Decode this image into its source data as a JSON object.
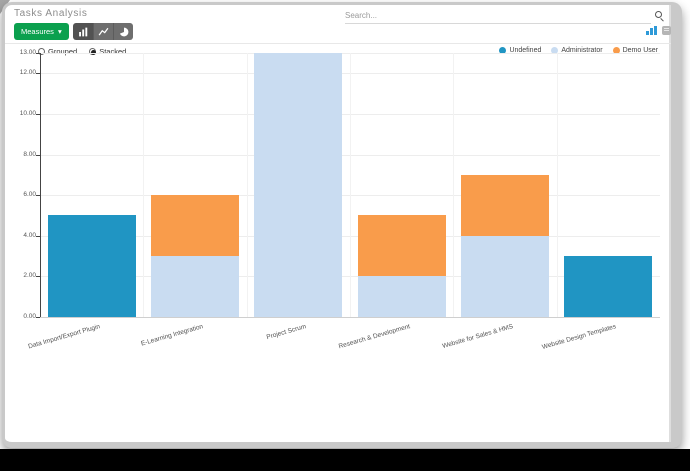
{
  "header": {
    "title": "Tasks Analysis",
    "search_placeholder": "Search...",
    "view_icons": [
      "graph-view",
      "grid-view"
    ],
    "active_view": "graph-view"
  },
  "toolbar": {
    "measures_label": "Measures",
    "measures_color": "#0ba04e",
    "chart_type_icons": [
      "bar-chart",
      "line-chart",
      "pie-chart"
    ],
    "active_chart_type": "bar-chart"
  },
  "mode": {
    "options": [
      "Grouped",
      "Stacked"
    ],
    "selected": "Stacked"
  },
  "chart_data": {
    "type": "bar",
    "stacked": true,
    "title": "Tasks Analysis",
    "categories": [
      "Data Import/Export Plugin",
      "E-Learning Integration",
      "Project Scrum",
      "Research & Development",
      "Website for Sales & HMS",
      "Website Design Templates"
    ],
    "series": [
      {
        "name": "Undefined",
        "color": "#2095c3",
        "values": [
          5,
          0,
          0,
          0,
          0,
          3
        ]
      },
      {
        "name": "Administrator",
        "color": "#c9dcf1",
        "values": [
          0,
          3,
          13,
          2,
          4,
          0
        ]
      },
      {
        "name": "Demo User",
        "color": "#f99c4b",
        "values": [
          0,
          3,
          0,
          3,
          3,
          0
        ]
      }
    ],
    "totals": [
      5,
      6,
      13,
      5,
      7,
      3
    ],
    "ylim": [
      0,
      13
    ],
    "y_ticks": [
      0,
      2,
      4,
      6,
      8,
      10,
      12,
      13
    ],
    "y_tick_labels": [
      "0.00",
      "2.00",
      "4.00",
      "6.00",
      "8.00",
      "10.00",
      "12.00",
      "13.00"
    ],
    "grid": true,
    "legend_position": "top-right"
  }
}
